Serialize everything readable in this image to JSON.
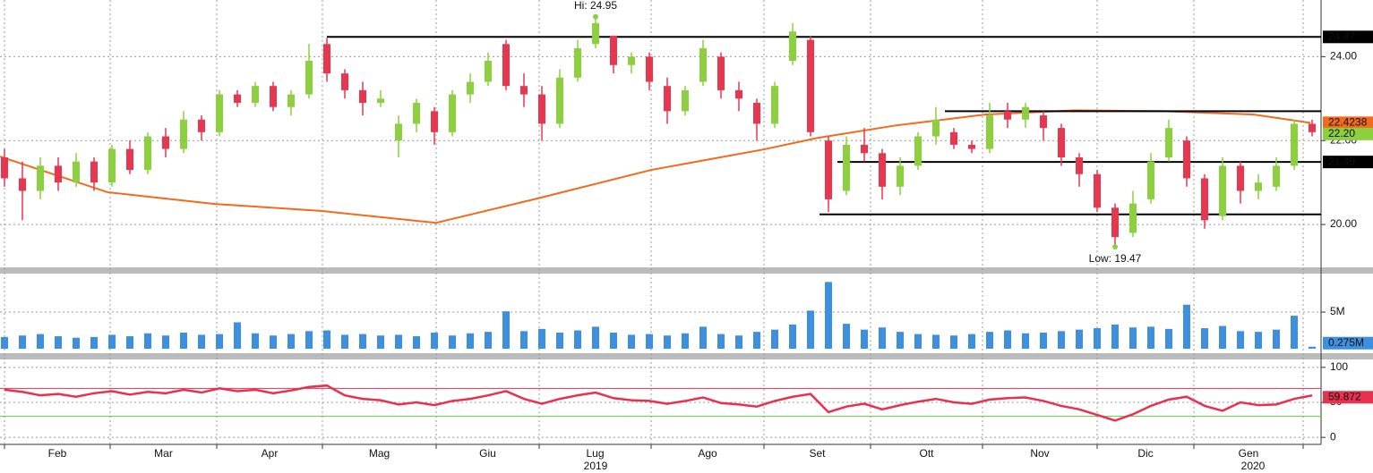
{
  "chart_data": [
    {
      "type": "candlestick",
      "xlim": [
        -0.25,
        73.5
      ],
      "ylim": [
        19,
        25.35
      ],
      "yticks": [
        {
          "value": 24,
          "label": "24.00"
        },
        {
          "value": 22,
          "label": "22.00"
        },
        {
          "value": 20,
          "label": "20.00"
        }
      ],
      "grid": true,
      "up_color": "#8ccf3f",
      "down_color": "#e63650",
      "x": [
        0,
        1,
        2,
        3,
        4,
        5,
        6,
        7,
        8,
        9,
        10,
        11,
        12,
        13,
        14,
        15,
        16,
        17,
        18,
        19,
        20,
        21,
        22,
        23,
        24,
        25,
        26,
        27,
        28,
        29,
        30,
        31,
        32,
        33,
        34,
        35,
        36,
        37,
        38,
        39,
        40,
        41,
        42,
        43,
        44,
        45,
        46,
        47,
        48,
        49,
        50,
        51,
        52,
        53,
        54,
        55,
        56,
        57,
        58,
        59,
        60,
        61,
        62,
        63,
        64,
        65,
        66,
        67,
        68,
        69,
        70,
        71,
        72,
        73
      ],
      "open": [
        21.6,
        21.1,
        20.8,
        21.4,
        21.0,
        21.5,
        21.0,
        21.8,
        21.3,
        22.1,
        21.8,
        22.5,
        22.2,
        23.1,
        22.9,
        23.3,
        22.8,
        23.1,
        24.3,
        23.6,
        23.2,
        22.9,
        22.0,
        22.4,
        22.7,
        22.2,
        23.1,
        23.4,
        24.3,
        23.3,
        23.1,
        22.4,
        23.5,
        24.3,
        24.5,
        23.8,
        24.0,
        23.3,
        22.7,
        23.4,
        24.0,
        23.2,
        22.9,
        22.4,
        23.9,
        24.4,
        22.0,
        20.8,
        21.9,
        21.7,
        20.9,
        21.4,
        22.1,
        22.2,
        21.9,
        21.8,
        22.7,
        22.5,
        22.6,
        22.3,
        21.6,
        21.2,
        20.4,
        19.8,
        20.6,
        21.6,
        22.0,
        21.1,
        20.2,
        21.4,
        20.8,
        20.9,
        21.4,
        22.4
      ],
      "high": [
        21.8,
        21.5,
        21.6,
        21.6,
        21.7,
        21.6,
        21.9,
        22.0,
        22.2,
        22.3,
        22.7,
        22.6,
        23.2,
        23.2,
        23.4,
        23.4,
        23.2,
        24.3,
        24.45,
        23.7,
        23.4,
        23.2,
        22.6,
        23.0,
        22.8,
        23.2,
        23.6,
        24.1,
        24.4,
        23.6,
        23.3,
        23.7,
        24.4,
        24.95,
        24.5,
        24.1,
        24.1,
        23.5,
        23.3,
        24.4,
        24.1,
        23.4,
        23.0,
        23.4,
        24.8,
        24.5,
        22.1,
        22.1,
        22.3,
        21.8,
        21.6,
        22.2,
        22.8,
        22.3,
        22.0,
        22.9,
        22.9,
        22.9,
        22.7,
        22.4,
        21.7,
        21.3,
        20.5,
        20.8,
        21.7,
        22.5,
        22.1,
        21.2,
        21.6,
        21.5,
        21.2,
        21.6,
        22.5,
        22.5
      ],
      "low": [
        20.9,
        20.1,
        20.6,
        20.8,
        20.9,
        20.8,
        20.9,
        21.2,
        21.2,
        21.6,
        21.7,
        22.0,
        22.1,
        22.8,
        22.8,
        22.7,
        22.6,
        23.0,
        23.4,
        23.0,
        22.6,
        22.8,
        21.6,
        22.2,
        21.9,
        22.1,
        22.9,
        23.3,
        23.2,
        22.8,
        22.0,
        22.3,
        23.4,
        24.2,
        23.6,
        23.6,
        23.2,
        22.4,
        22.6,
        23.3,
        23.0,
        22.7,
        22.0,
        22.3,
        23.8,
        22.1,
        20.3,
        20.7,
        21.5,
        20.6,
        20.7,
        21.3,
        21.9,
        21.8,
        21.7,
        21.7,
        22.3,
        22.3,
        22.0,
        21.4,
        20.9,
        20.3,
        19.47,
        19.7,
        20.5,
        21.5,
        20.9,
        19.9,
        20.1,
        20.5,
        20.6,
        20.8,
        21.3,
        22.1
      ],
      "close": [
        21.1,
        20.8,
        21.4,
        21.0,
        21.5,
        21.0,
        21.8,
        21.3,
        22.1,
        21.8,
        22.5,
        22.2,
        23.1,
        22.9,
        23.3,
        22.8,
        23.1,
        23.9,
        23.6,
        23.2,
        22.9,
        23.0,
        22.4,
        22.9,
        22.2,
        23.1,
        23.4,
        23.9,
        23.3,
        23.1,
        22.4,
        23.5,
        24.2,
        24.8,
        23.8,
        24.0,
        23.4,
        22.7,
        23.2,
        24.2,
        23.2,
        23.0,
        22.4,
        23.3,
        24.6,
        22.2,
        20.6,
        21.9,
        21.7,
        20.9,
        21.4,
        22.1,
        22.5,
        21.9,
        21.8,
        22.6,
        22.5,
        22.8,
        22.3,
        21.6,
        21.2,
        20.4,
        19.7,
        20.5,
        21.5,
        22.3,
        21.1,
        20.1,
        21.4,
        20.8,
        21.0,
        21.4,
        22.4,
        22.2
      ],
      "last_price_label": "22.20",
      "moving_average": {
        "color": "#f26a1b",
        "x": [
          -0.25,
          5.75,
          11.75,
          17.75,
          24.1,
          29.75,
          36.1,
          42.4,
          45.35,
          49.75,
          54.75,
          59.75,
          64.75,
          69.75,
          72.9
        ],
        "values": [
          21.62,
          20.77,
          20.49,
          20.32,
          20.04,
          20.62,
          21.3,
          21.79,
          22.06,
          22.36,
          22.62,
          22.72,
          22.7,
          22.62,
          22.4238
        ]
      },
      "levels": [
        {
          "value": 24.47,
          "from": 18,
          "labeled": true
        },
        {
          "value": 22.7,
          "from": 52.5,
          "labeled": false
        },
        {
          "value": 21.49,
          "from": 46.5,
          "labeled": true
        },
        {
          "value": 20.24,
          "from": 45.5,
          "labeled": false
        }
      ],
      "annotations": [
        {
          "text": "Hi: 24.95",
          "x": 33,
          "y": 24.95
        },
        {
          "text": "Low: 19.47",
          "x": 62,
          "y": 19.47
        }
      ]
    },
    {
      "type": "bar",
      "color": "#3d8fe0",
      "ylim": [
        0,
        10000000
      ],
      "yticks": [
        {
          "value": 5000000,
          "label": "5M"
        }
      ],
      "values": [
        1600000,
        1800000,
        2000000,
        1700000,
        1500000,
        1600000,
        1900000,
        1700000,
        2100000,
        1800000,
        2200000,
        1900000,
        2000000,
        3600000,
        2100000,
        1800000,
        2000000,
        2400000,
        2500000,
        1900000,
        2000000,
        1800000,
        1900000,
        1700000,
        2200000,
        1800000,
        2100000,
        2300000,
        5100000,
        2400000,
        2700000,
        2200000,
        2500000,
        3000000,
        2200000,
        1900000,
        2000000,
        1800000,
        2100000,
        3000000,
        2000000,
        1800000,
        2300000,
        2600000,
        3300000,
        5200000,
        9100000,
        3400000,
        2600000,
        2900000,
        2300000,
        2000000,
        1900000,
        1800000,
        2000000,
        2300000,
        2500000,
        2100000,
        2200000,
        2400000,
        2600000,
        2800000,
        3300000,
        2900000,
        3000000,
        2700000,
        6000000,
        2800000,
        3100000,
        2400000,
        2300000,
        2600000,
        4500000,
        275000
      ],
      "last_label": "0.275M"
    },
    {
      "type": "line",
      "color": "#e8304f",
      "ylim": [
        -10,
        110
      ],
      "yticks": [
        0,
        50,
        100
      ],
      "levels": [
        {
          "value": 70,
          "color": "#e8304f"
        },
        {
          "value": 30,
          "color": "#5ccf3f"
        }
      ],
      "values": [
        68,
        65,
        60,
        62,
        58,
        63,
        66,
        61,
        65,
        63,
        68,
        64,
        70,
        66,
        68,
        63,
        67,
        72,
        74,
        60,
        55,
        53,
        47,
        50,
        46,
        52,
        55,
        60,
        66,
        55,
        48,
        55,
        60,
        64,
        56,
        53,
        52,
        48,
        52,
        57,
        49,
        47,
        44,
        52,
        58,
        62,
        36,
        44,
        48,
        40,
        46,
        51,
        55,
        50,
        48,
        54,
        56,
        57,
        52,
        45,
        40,
        32,
        24,
        33,
        45,
        54,
        58,
        45,
        38,
        50,
        46,
        47,
        55,
        59.872
      ]
    }
  ],
  "x_axis": {
    "month_starts": [
      0,
      5.9,
      11.85,
      17.75,
      24.1,
      29.85,
      36.1,
      42.4,
      48.35,
      54.6,
      61,
      66.4,
      72.5
    ],
    "months": [
      "Feb",
      "Mar",
      "Apr",
      "Mag",
      "Giu",
      "Lug",
      "Ago",
      "Set",
      "Ott",
      "Nov",
      "Dic",
      "Gen"
    ],
    "years": [
      {
        "label": "2019",
        "x": 33
      },
      {
        "label": "2020",
        "x": 69.7
      }
    ]
  }
}
